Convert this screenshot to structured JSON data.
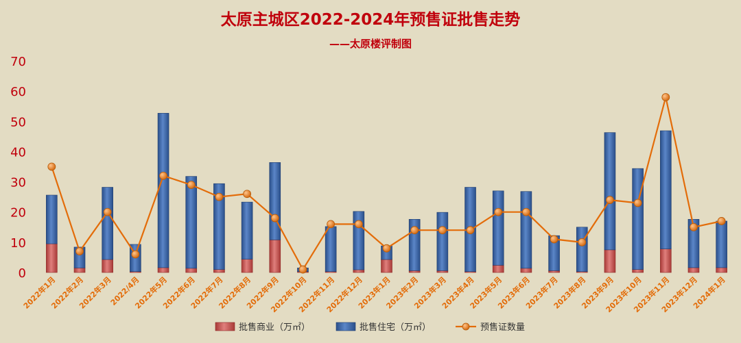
{
  "chart_data": {
    "type": "bar",
    "title": "太原主城区2022-2024年预售证批售走势",
    "subtitle": "——太原楼评制图",
    "categories": [
      "2022年1月",
      "2022年2月",
      "2022年3月",
      "2022/4月",
      "2022年5月",
      "2022年6月",
      "2022年7月",
      "2022年8月",
      "2022年9月",
      "2022年10月",
      "2022年11月",
      "2022年12月",
      "2023年1月",
      "2023年2月",
      "2023年3月",
      "2023年4月",
      "2023年5月",
      "2023年6月",
      "2023年7月",
      "2023年8月",
      "2023年9月",
      "2023年10月",
      "2023年11月",
      "2023年12月",
      "2024年1月"
    ],
    "series": [
      {
        "name": "批售商业（万㎡）",
        "kind": "bar-stacked",
        "color": "#c0504d",
        "values": [
          9.5,
          1.5,
          4.3,
          0.3,
          1.6,
          1.4,
          1.0,
          4.4,
          10.8,
          0.3,
          0.3,
          0.9,
          4.3,
          0.6,
          0.6,
          0.3,
          2.4,
          1.4,
          0.6,
          0.3,
          7.5,
          1.0,
          7.8,
          1.6,
          1.6
        ]
      },
      {
        "name": "批售住宅（万㎡）",
        "kind": "bar-stacked",
        "color": "#3a67ad",
        "values": [
          16.1,
          6.9,
          23.9,
          9.0,
          51.1,
          30.4,
          28.4,
          18.9,
          25.6,
          1.2,
          14.9,
          19.3,
          4.5,
          17.0,
          19.3,
          27.9,
          24.6,
          25.4,
          11.6,
          14.7,
          38.8,
          33.4,
          39.1,
          16.0,
          15.4
        ]
      },
      {
        "name": "预售证数量",
        "kind": "line",
        "color": "#e36c09",
        "values": [
          35,
          7,
          20,
          6,
          32,
          29,
          25,
          26,
          18,
          1,
          16,
          16,
          8,
          14,
          14,
          14,
          20,
          20,
          11,
          10,
          24,
          23,
          58,
          15,
          17
        ]
      }
    ],
    "ylim": [
      0,
      70
    ],
    "yticks": [
      0,
      10,
      20,
      30,
      40,
      50,
      60,
      70
    ],
    "grid": false,
    "legend": "bottom",
    "colors": {
      "title": "#c0000c",
      "axis_labels": "#c0000c",
      "category_labels": "#e36c09",
      "background": "#e3dcc3"
    }
  }
}
